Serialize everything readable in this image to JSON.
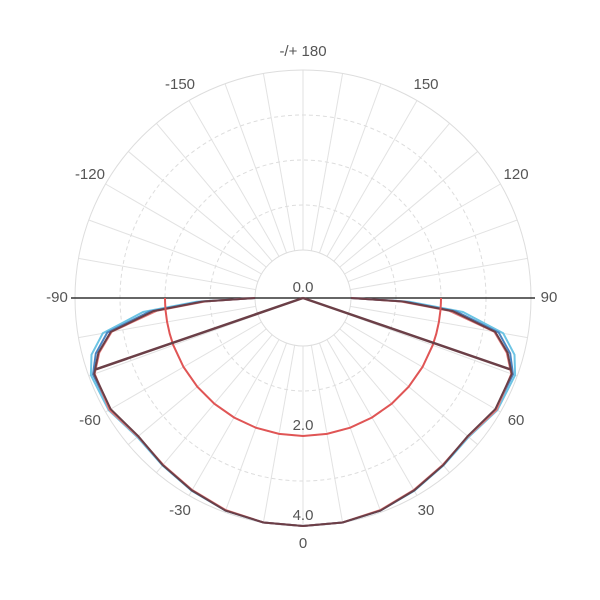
{
  "chart_data": {
    "type": "polar",
    "theta": [
      -90,
      -88,
      -85,
      -80,
      -75,
      -70,
      -60,
      -50,
      -40,
      -30,
      -20,
      -10,
      0,
      10,
      20,
      30,
      40,
      50,
      60,
      70,
      75,
      80,
      85,
      88,
      90
    ],
    "series": [
      {
        "color": "#6cc4e4",
        "values": [
          0,
          1.3,
          2.5,
          3.45,
          3.8,
          3.95,
          3.92,
          3.74,
          3.79,
          3.88,
          3.96,
          4.0,
          4.0,
          4.0,
          3.96,
          3.88,
          3.79,
          3.74,
          3.92,
          3.95,
          3.8,
          3.45,
          2.5,
          1.3,
          0
        ]
      },
      {
        "color": "#4a84c0",
        "values": [
          0,
          1.2,
          2.35,
          3.35,
          3.7,
          3.9,
          3.88,
          3.72,
          3.78,
          3.87,
          3.96,
          4.0,
          4.0,
          4.0,
          3.96,
          3.87,
          3.78,
          3.72,
          3.88,
          3.9,
          3.7,
          3.35,
          2.35,
          1.2,
          0
        ]
      },
      {
        "color": "#e77b7b",
        "values": [
          0,
          1.1,
          2.2,
          3.25,
          3.62,
          3.86,
          3.9,
          3.72,
          3.77,
          3.86,
          3.95,
          4.0,
          4.0,
          4.0,
          3.95,
          3.86,
          3.77,
          3.72,
          3.9,
          3.86,
          3.62,
          3.25,
          2.2,
          1.1,
          0
        ]
      },
      {
        "color": "#6b3f47",
        "values": [
          0,
          1.16,
          2.27,
          3.27,
          3.64,
          3.87,
          3.87,
          3.71,
          3.78,
          3.87,
          3.96,
          4.0,
          4.0,
          4.0,
          3.96,
          3.87,
          3.78,
          3.71,
          3.87,
          3.87,
          3.64,
          3.27,
          2.27,
          1.16,
          0
        ]
      },
      {
        "color": "#e05555",
        "values": [
          2.0,
          2.0,
          2.0,
          2.0,
          2.0,
          2.0,
          2.0,
          2.0,
          2.0,
          2.0,
          2.0,
          2.0,
          2.0,
          2.0,
          2.0,
          2.0,
          2.0,
          2.0,
          2.0,
          2.0,
          2.0,
          2.0,
          2.0,
          2.0,
          2.0
        ]
      }
    ],
    "beam_angles": [
      -71,
      71
    ],
    "beam_value": 3.8,
    "beam_color": "#6b3f47",
    "rlim": [
      0,
      4.0
    ],
    "rticks": [
      {
        "value": 0,
        "label": "0.0"
      },
      {
        "value": 2,
        "label": "2.0"
      },
      {
        "value": 4,
        "label": "4.0"
      }
    ],
    "thetaticks": [
      0,
      30,
      60,
      90,
      120,
      150,
      {
        "value": 180,
        "label": "-/+ 180"
      },
      -150,
      -120,
      -90,
      -60,
      -30
    ],
    "grid": true
  }
}
